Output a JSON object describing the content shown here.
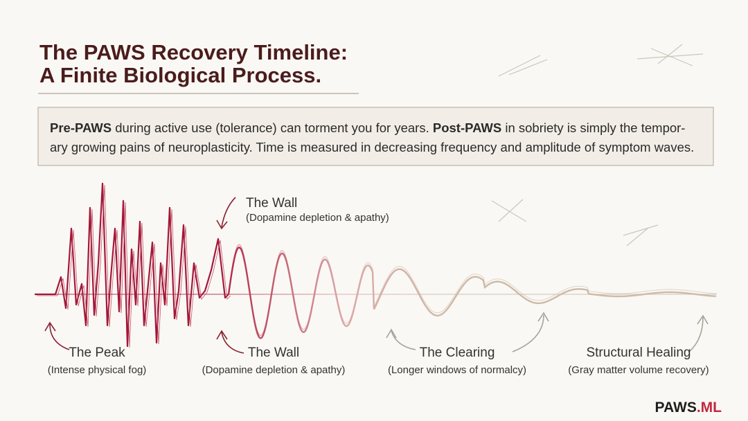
{
  "header": {
    "title_lines": [
      "The PAWS Recovery Timeline:",
      "A Finite Biological Process."
    ]
  },
  "callout": {
    "lines": [
      [
        {
          "text": "Pre-PAWS",
          "bold": true
        },
        {
          "text": " during active use (tolerance) can torment you for years. ",
          "bold": false
        },
        {
          "text": "Post-PAWS",
          "bold": true
        },
        {
          "text": " in sobriety is simply the tempor-",
          "bold": false
        }
      ],
      [
        {
          "text": "ary growing pains of neuroplasticity. Time is measured in decreasing frequency and amplitude of symptom waves.",
          "bold": false
        }
      ]
    ]
  },
  "annotations": [
    {
      "title": "The Wall",
      "subtitle": "(Dopamine depletion & apathy)"
    },
    {
      "title": "The Peak",
      "subtitle": "(Intense physical fog)"
    },
    {
      "title": "The Wall",
      "subtitle": "(Dopamine depletion & apathy)"
    },
    {
      "title": "The Clearing",
      "subtitle": "(Longer windows of normalcy)"
    },
    {
      "title": "Structural Healing",
      "subtitle": "(Gray matter volume recovery)"
    }
  ],
  "logo": {
    "main": "PAWS",
    "suffix": ".ML"
  }
}
